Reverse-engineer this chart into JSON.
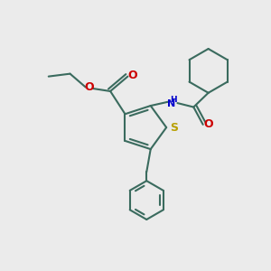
{
  "bg_color": "#ebebeb",
  "bond_color": "#3a6b5e",
  "sulfur_color": "#b8a000",
  "nitrogen_color": "#0000cc",
  "oxygen_color": "#cc0000",
  "lw": 1.5,
  "figsize": [
    3.0,
    3.0
  ],
  "dpi": 100,
  "xlim": [
    0,
    10
  ],
  "ylim": [
    0,
    10
  ]
}
